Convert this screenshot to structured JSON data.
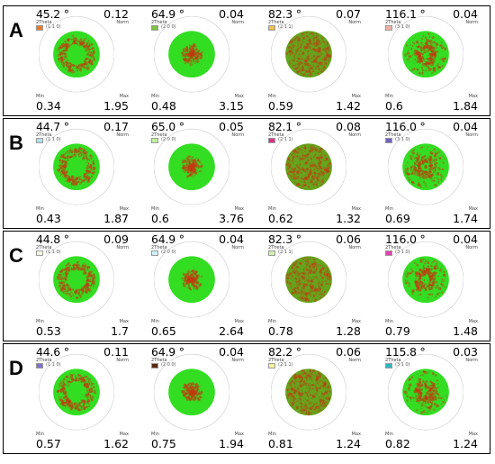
{
  "panels": [
    {
      "letter": "A",
      "poles": [
        {
          "angle": "45.2 °",
          "twotheta": "2Theta",
          "hkl": "(1 1 0)",
          "color": "#f07820",
          "norm": "0.12",
          "min": "0.34",
          "max": "1.95",
          "pattern": "ring"
        },
        {
          "angle": "64.9 °",
          "twotheta": "2Theta",
          "hkl": "(2 0 0)",
          "color": "#7cc040",
          "norm": "0.04",
          "min": "0.48",
          "max": "3.15",
          "pattern": "center"
        },
        {
          "angle": "82.3 °",
          "twotheta": "2Theta",
          "hkl": "(2 1 1)",
          "color": "#f0c050",
          "norm": "0.07",
          "min": "0.59",
          "max": "1.42",
          "pattern": "spread"
        },
        {
          "angle": "116.1 °",
          "twotheta": "2Theta",
          "hkl": "(3 1 0)",
          "color": "#f0b0a8",
          "norm": "0.04",
          "min": "0.6",
          "max": "1.84",
          "pattern": "mixed"
        }
      ]
    },
    {
      "letter": "B",
      "poles": [
        {
          "angle": "44.7 °",
          "twotheta": "2Theta",
          "hkl": "(1 1 0)",
          "color": "#b0e0f0",
          "norm": "0.17",
          "min": "0.43",
          "max": "1.87",
          "pattern": "ring"
        },
        {
          "angle": "65.0 °",
          "twotheta": "2Theta",
          "hkl": "(2 0 0)",
          "color": "#c0f0a0",
          "norm": "0.05",
          "min": "0.6",
          "max": "3.76",
          "pattern": "center"
        },
        {
          "angle": "82.1 °",
          "twotheta": "2Theta",
          "hkl": "(2 1 1)",
          "color": "#e0308a",
          "norm": "0.08",
          "min": "0.62",
          "max": "1.32",
          "pattern": "spread"
        },
        {
          "angle": "116.0 °",
          "twotheta": "2Theta",
          "hkl": "(3 1 0)",
          "color": "#7060c0",
          "norm": "0.04",
          "min": "0.69",
          "max": "1.74",
          "pattern": "mixed"
        }
      ]
    },
    {
      "letter": "C",
      "poles": [
        {
          "angle": "44.8 °",
          "twotheta": "2Theta",
          "hkl": "(1 1 0)",
          "color": "#f8f8e0",
          "norm": "0.09",
          "min": "0.53",
          "max": "1.7",
          "pattern": "ring"
        },
        {
          "angle": "64.9 °",
          "twotheta": "2Theta",
          "hkl": "(2 0 0)",
          "color": "#d0f0f8",
          "norm": "0.04",
          "min": "0.65",
          "max": "2.64",
          "pattern": "center"
        },
        {
          "angle": "82.3 °",
          "twotheta": "2Theta",
          "hkl": "(2 1 1)",
          "color": "#d0f0b0",
          "norm": "0.06",
          "min": "0.78",
          "max": "1.28",
          "pattern": "spread"
        },
        {
          "angle": "116.0 °",
          "twotheta": "2Theta",
          "hkl": "(3 1 0)",
          "color": "#e040b0",
          "norm": "0.04",
          "min": "0.79",
          "max": "1.48",
          "pattern": "mixed"
        }
      ]
    },
    {
      "letter": "D",
      "poles": [
        {
          "angle": "44.6 °",
          "twotheta": "2Theta",
          "hkl": "(1 1 0)",
          "color": "#8070d0",
          "norm": "0.11",
          "min": "0.57",
          "max": "1.62",
          "pattern": "ring"
        },
        {
          "angle": "64.9 °",
          "twotheta": "2Theta",
          "hkl": "(2 0 0)",
          "color": "#5a2a10",
          "norm": "0.04",
          "min": "0.75",
          "max": "1.94",
          "pattern": "center"
        },
        {
          "angle": "82.2 °",
          "twotheta": "2Theta",
          "hkl": "(2 1 1)",
          "color": "#f8f0a0",
          "norm": "0.06",
          "min": "0.81",
          "max": "1.24",
          "pattern": "spread"
        },
        {
          "angle": "115.8 °",
          "twotheta": "2Theta",
          "hkl": "(3 1 0)",
          "color": "#30b8c0",
          "norm": "0.03",
          "min": "0.82",
          "max": "1.24",
          "pattern": "mixed"
        }
      ]
    }
  ],
  "labels": {
    "norm": "Norm",
    "min": "Min",
    "max": "Max"
  },
  "colors": {
    "low": "#33dd22",
    "high": "#c43a10",
    "outer_circle": "#cfcfcf"
  }
}
